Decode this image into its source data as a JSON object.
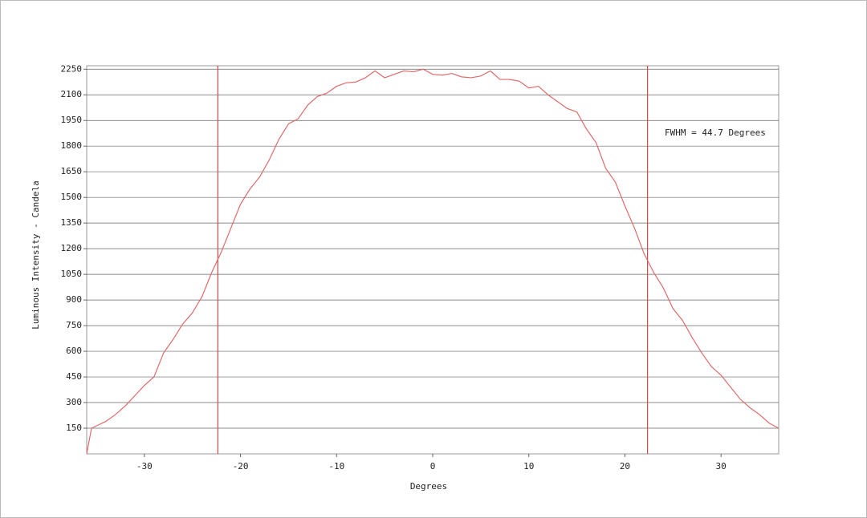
{
  "chart_data": {
    "type": "line",
    "x": [
      -36,
      -35.5,
      -34,
      -33,
      -32,
      -31,
      -30,
      -29,
      -28,
      -27,
      -26,
      -25,
      -24,
      -23,
      -22,
      -21,
      -20,
      -19,
      -18,
      -17,
      -16,
      -15,
      -14,
      -13,
      -12,
      -11,
      -10,
      -9,
      -8,
      -7,
      -6,
      -5,
      -4,
      -3,
      -2,
      -1,
      0,
      1,
      2,
      3,
      4,
      5,
      6,
      7,
      8,
      9,
      10,
      11,
      12,
      13,
      14,
      15,
      16,
      17,
      18,
      19,
      20,
      21,
      22,
      23,
      24,
      25,
      26,
      27,
      28,
      29,
      30,
      31,
      32,
      33,
      34,
      35,
      36
    ],
    "values": [
      0,
      150,
      190,
      230,
      280,
      340,
      400,
      450,
      590,
      670,
      760,
      825,
      920,
      1060,
      1180,
      1320,
      1460,
      1550,
      1620,
      1720,
      1840,
      1930,
      1960,
      2040,
      2090,
      2110,
      2150,
      2170,
      2175,
      2200,
      2240,
      2200,
      2220,
      2240,
      2235,
      2250,
      2220,
      2215,
      2225,
      2205,
      2200,
      2210,
      2240,
      2190,
      2190,
      2180,
      2140,
      2150,
      2100,
      2060,
      2020,
      2000,
      1900,
      1820,
      1670,
      1590,
      1450,
      1320,
      1170,
      1060,
      970,
      850,
      780,
      680,
      590,
      510,
      460,
      390,
      320,
      270,
      230,
      180,
      150
    ],
    "color": "#e06a6a",
    "vlines": [
      -22.35,
      22.35
    ],
    "vline_color": "#d04848",
    "annotation": "FWHM = 44.7 Degrees",
    "annotation_color": "#d03030",
    "x_label": "Degrees",
    "y_label": "Luminous Intensity - Candela",
    "xlim": [
      -36,
      36
    ],
    "ylim": [
      0,
      2270
    ],
    "xticks": [
      -30,
      -20,
      -10,
      0,
      10,
      20,
      30
    ],
    "yticks": [
      150,
      300,
      450,
      600,
      750,
      900,
      1050,
      1200,
      1350,
      1500,
      1650,
      1800,
      1950,
      2100,
      2250
    ],
    "grid": true
  }
}
